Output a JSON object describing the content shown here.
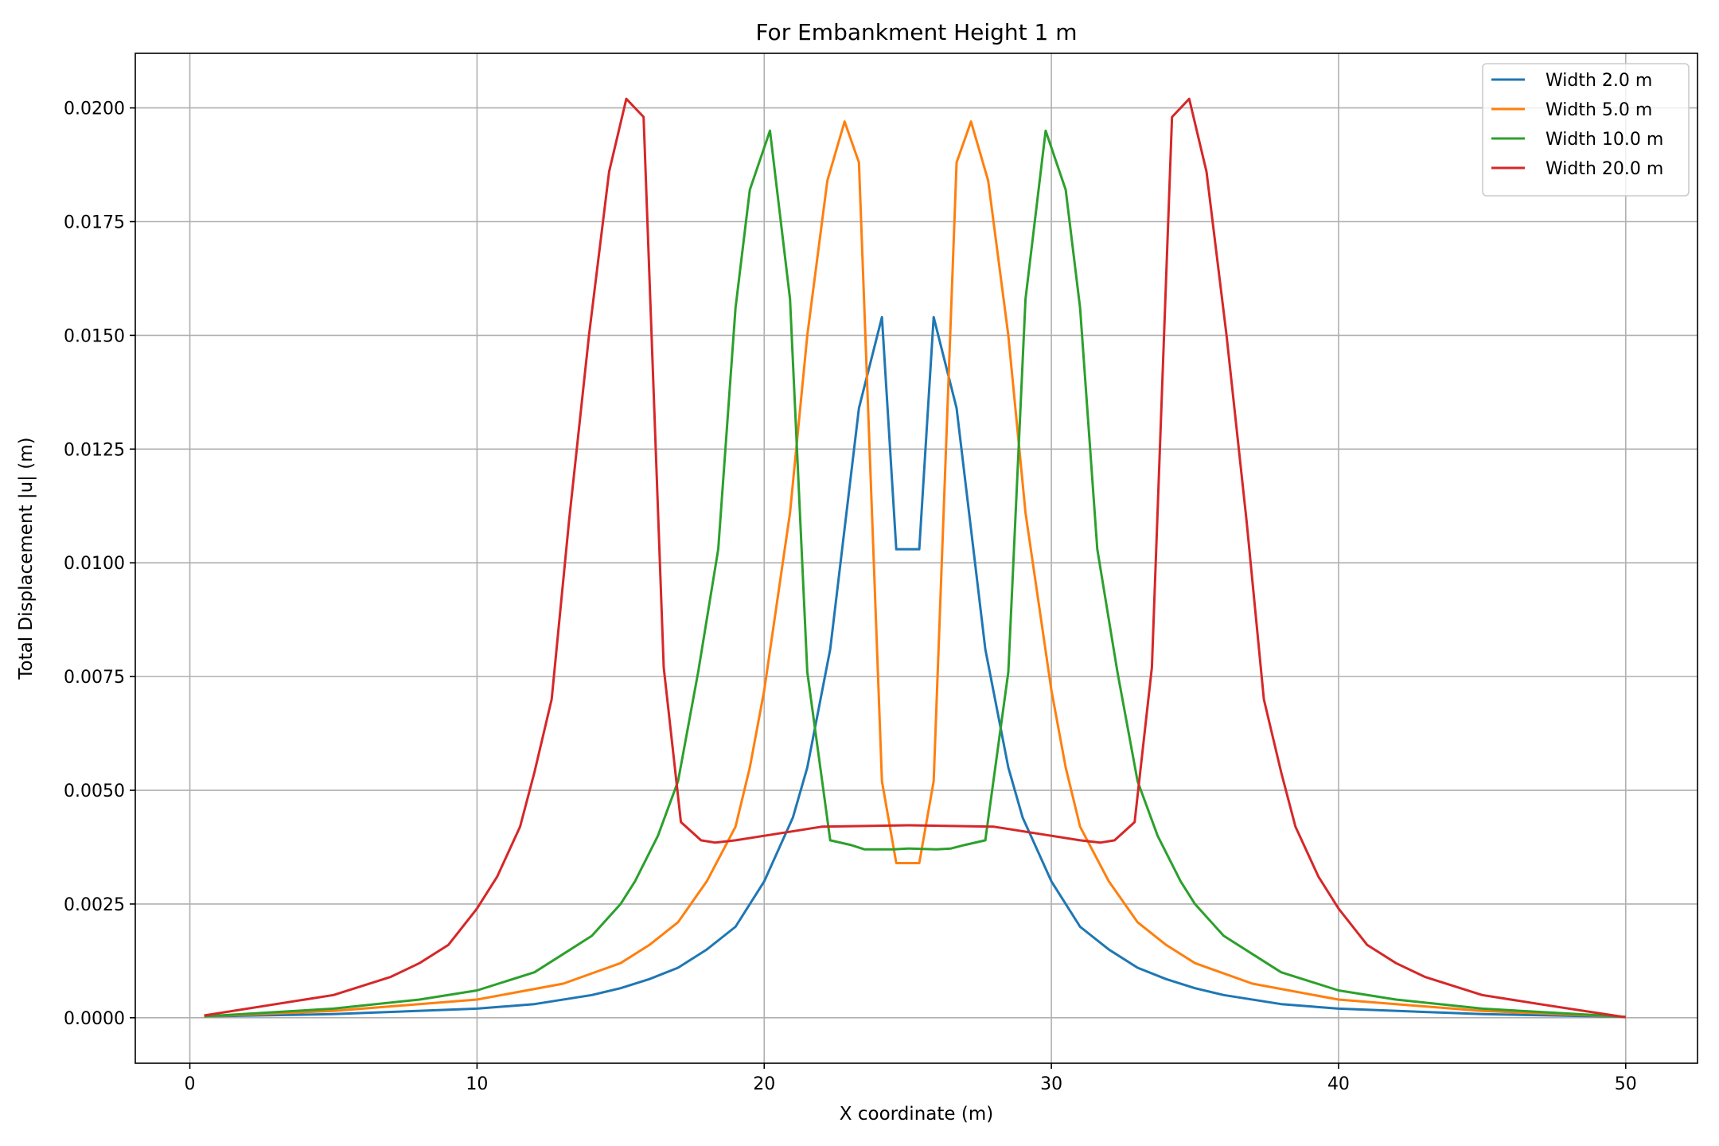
{
  "chart_data": {
    "type": "line",
    "title": "For Embankment Height 1 m",
    "xlabel": "X coordinate (m)",
    "ylabel": "Total Displacement |u| (m)",
    "xlim": [
      -1.9,
      52.5
    ],
    "ylim": [
      -0.001,
      0.0212
    ],
    "xticks": [
      0,
      10,
      20,
      30,
      40,
      50
    ],
    "xtick_labels": [
      "0",
      "10",
      "20",
      "30",
      "40",
      "50"
    ],
    "yticks": [
      0.0,
      0.0025,
      0.005,
      0.0075,
      0.01,
      0.0125,
      0.015,
      0.0175,
      0.02
    ],
    "ytick_labels": [
      "0.0000",
      "0.0025",
      "0.0050",
      "0.0075",
      "0.0100",
      "0.0125",
      "0.0150",
      "0.0175",
      "0.0200"
    ],
    "grid": true,
    "legend_position": "top-right",
    "series": [
      {
        "name": "Width 2.0 m",
        "color": "#1f77b4",
        "points": [
          [
            0.5,
            3e-05
          ],
          [
            5,
            8e-05
          ],
          [
            10,
            0.0002
          ],
          [
            12,
            0.0003
          ],
          [
            14,
            0.0005
          ],
          [
            15,
            0.00065
          ],
          [
            16,
            0.00085
          ],
          [
            17,
            0.0011
          ],
          [
            18,
            0.0015
          ],
          [
            19,
            0.002
          ],
          [
            20,
            0.003
          ],
          [
            21,
            0.0044
          ],
          [
            21.5,
            0.0055
          ],
          [
            22.3,
            0.0081
          ],
          [
            23.3,
            0.0134
          ],
          [
            24.1,
            0.0154
          ],
          [
            24.6,
            0.0103
          ],
          [
            25.4,
            0.0103
          ],
          [
            25.9,
            0.0154
          ],
          [
            26.7,
            0.0134
          ],
          [
            27.7,
            0.0081
          ],
          [
            28.5,
            0.0055
          ],
          [
            29,
            0.0044
          ],
          [
            30,
            0.003
          ],
          [
            31,
            0.002
          ],
          [
            32,
            0.0015
          ],
          [
            33,
            0.0011
          ],
          [
            34,
            0.00085
          ],
          [
            35,
            0.00065
          ],
          [
            36,
            0.0005
          ],
          [
            38,
            0.0003
          ],
          [
            40,
            0.0002
          ],
          [
            45,
            8e-05
          ],
          [
            50,
            2e-05
          ]
        ]
      },
      {
        "name": "Width 5.0 m",
        "color": "#ff7f0e",
        "points": [
          [
            0.5,
            3e-05
          ],
          [
            5,
            0.00015
          ],
          [
            10,
            0.0004
          ],
          [
            13,
            0.00075
          ],
          [
            15,
            0.0012
          ],
          [
            16,
            0.0016
          ],
          [
            17,
            0.0021
          ],
          [
            18,
            0.003
          ],
          [
            19,
            0.0042
          ],
          [
            19.5,
            0.0055
          ],
          [
            20,
            0.0072
          ],
          [
            20.9,
            0.0111
          ],
          [
            21.5,
            0.015
          ],
          [
            22.2,
            0.0184
          ],
          [
            22.8,
            0.0197
          ],
          [
            23.3,
            0.0188
          ],
          [
            24.1,
            0.0052
          ],
          [
            24.6,
            0.0034
          ],
          [
            25.4,
            0.0034
          ],
          [
            25.9,
            0.0052
          ],
          [
            26.7,
            0.0188
          ],
          [
            27.2,
            0.0197
          ],
          [
            27.8,
            0.0184
          ],
          [
            28.5,
            0.015
          ],
          [
            29.1,
            0.0111
          ],
          [
            30,
            0.0072
          ],
          [
            30.5,
            0.0055
          ],
          [
            31,
            0.0042
          ],
          [
            32,
            0.003
          ],
          [
            33,
            0.0021
          ],
          [
            34,
            0.0016
          ],
          [
            35,
            0.0012
          ],
          [
            37,
            0.00075
          ],
          [
            40,
            0.0004
          ],
          [
            45,
            0.00015
          ],
          [
            50,
            2e-05
          ]
        ]
      },
      {
        "name": "Width 10.0 m",
        "color": "#2ca02c",
        "points": [
          [
            0.5,
            3e-05
          ],
          [
            5,
            0.0002
          ],
          [
            8,
            0.0004
          ],
          [
            10,
            0.0006
          ],
          [
            12,
            0.001
          ],
          [
            13,
            0.0014
          ],
          [
            14,
            0.0018
          ],
          [
            15,
            0.0025
          ],
          [
            15.5,
            0.003
          ],
          [
            16.3,
            0.004
          ],
          [
            17,
            0.0052
          ],
          [
            17.7,
            0.0076
          ],
          [
            18.4,
            0.0103
          ],
          [
            19,
            0.0156
          ],
          [
            19.5,
            0.0182
          ],
          [
            20.2,
            0.0195
          ],
          [
            20.9,
            0.0158
          ],
          [
            21.5,
            0.0076
          ],
          [
            22.3,
            0.0039
          ],
          [
            23,
            0.0038
          ],
          [
            23.5,
            0.0037
          ],
          [
            24.5,
            0.0037
          ],
          [
            25,
            0.00372
          ],
          [
            26,
            0.0037
          ],
          [
            26.5,
            0.00372
          ],
          [
            27,
            0.0038
          ],
          [
            27.7,
            0.0039
          ],
          [
            28.5,
            0.0076
          ],
          [
            29.1,
            0.0158
          ],
          [
            29.8,
            0.0195
          ],
          [
            30.5,
            0.0182
          ],
          [
            31,
            0.0156
          ],
          [
            31.6,
            0.0103
          ],
          [
            32.3,
            0.0076
          ],
          [
            33,
            0.0052
          ],
          [
            33.7,
            0.004
          ],
          [
            34.5,
            0.003
          ],
          [
            35,
            0.0025
          ],
          [
            36,
            0.0018
          ],
          [
            37,
            0.0014
          ],
          [
            38,
            0.001
          ],
          [
            40,
            0.0006
          ],
          [
            42,
            0.0004
          ],
          [
            45,
            0.0002
          ],
          [
            50,
            2e-05
          ]
        ]
      },
      {
        "name": "Width 20.0 m",
        "color": "#d62728",
        "points": [
          [
            0.5,
            5e-05
          ],
          [
            3,
            0.0003
          ],
          [
            5,
            0.0005
          ],
          [
            7,
            0.0009
          ],
          [
            8,
            0.0012
          ],
          [
            9,
            0.0016
          ],
          [
            10,
            0.0024
          ],
          [
            10.7,
            0.0031
          ],
          [
            11.5,
            0.0042
          ],
          [
            12,
            0.0054
          ],
          [
            12.6,
            0.007
          ],
          [
            13.2,
            0.0109
          ],
          [
            13.9,
            0.015
          ],
          [
            14.6,
            0.0186
          ],
          [
            15.2,
            0.0202
          ],
          [
            15.8,
            0.0198
          ],
          [
            16.5,
            0.0077
          ],
          [
            17.1,
            0.0043
          ],
          [
            17.8,
            0.0039
          ],
          [
            18.3,
            0.00385
          ],
          [
            19,
            0.0039
          ],
          [
            20,
            0.004
          ],
          [
            22,
            0.0042
          ],
          [
            25,
            0.00423
          ],
          [
            28,
            0.0042
          ],
          [
            30,
            0.004
          ],
          [
            31,
            0.0039
          ],
          [
            31.7,
            0.00385
          ],
          [
            32.2,
            0.0039
          ],
          [
            32.9,
            0.0043
          ],
          [
            33.5,
            0.0077
          ],
          [
            34.2,
            0.0198
          ],
          [
            34.8,
            0.0202
          ],
          [
            35.4,
            0.0186
          ],
          [
            36.1,
            0.015
          ],
          [
            36.8,
            0.0109
          ],
          [
            37.4,
            0.007
          ],
          [
            38,
            0.0054
          ],
          [
            38.5,
            0.0042
          ],
          [
            39.3,
            0.0031
          ],
          [
            40,
            0.0024
          ],
          [
            41,
            0.0016
          ],
          [
            42,
            0.0012
          ],
          [
            43,
            0.0009
          ],
          [
            45,
            0.0005
          ],
          [
            47,
            0.0003
          ],
          [
            50,
            1e-05
          ]
        ]
      }
    ]
  }
}
